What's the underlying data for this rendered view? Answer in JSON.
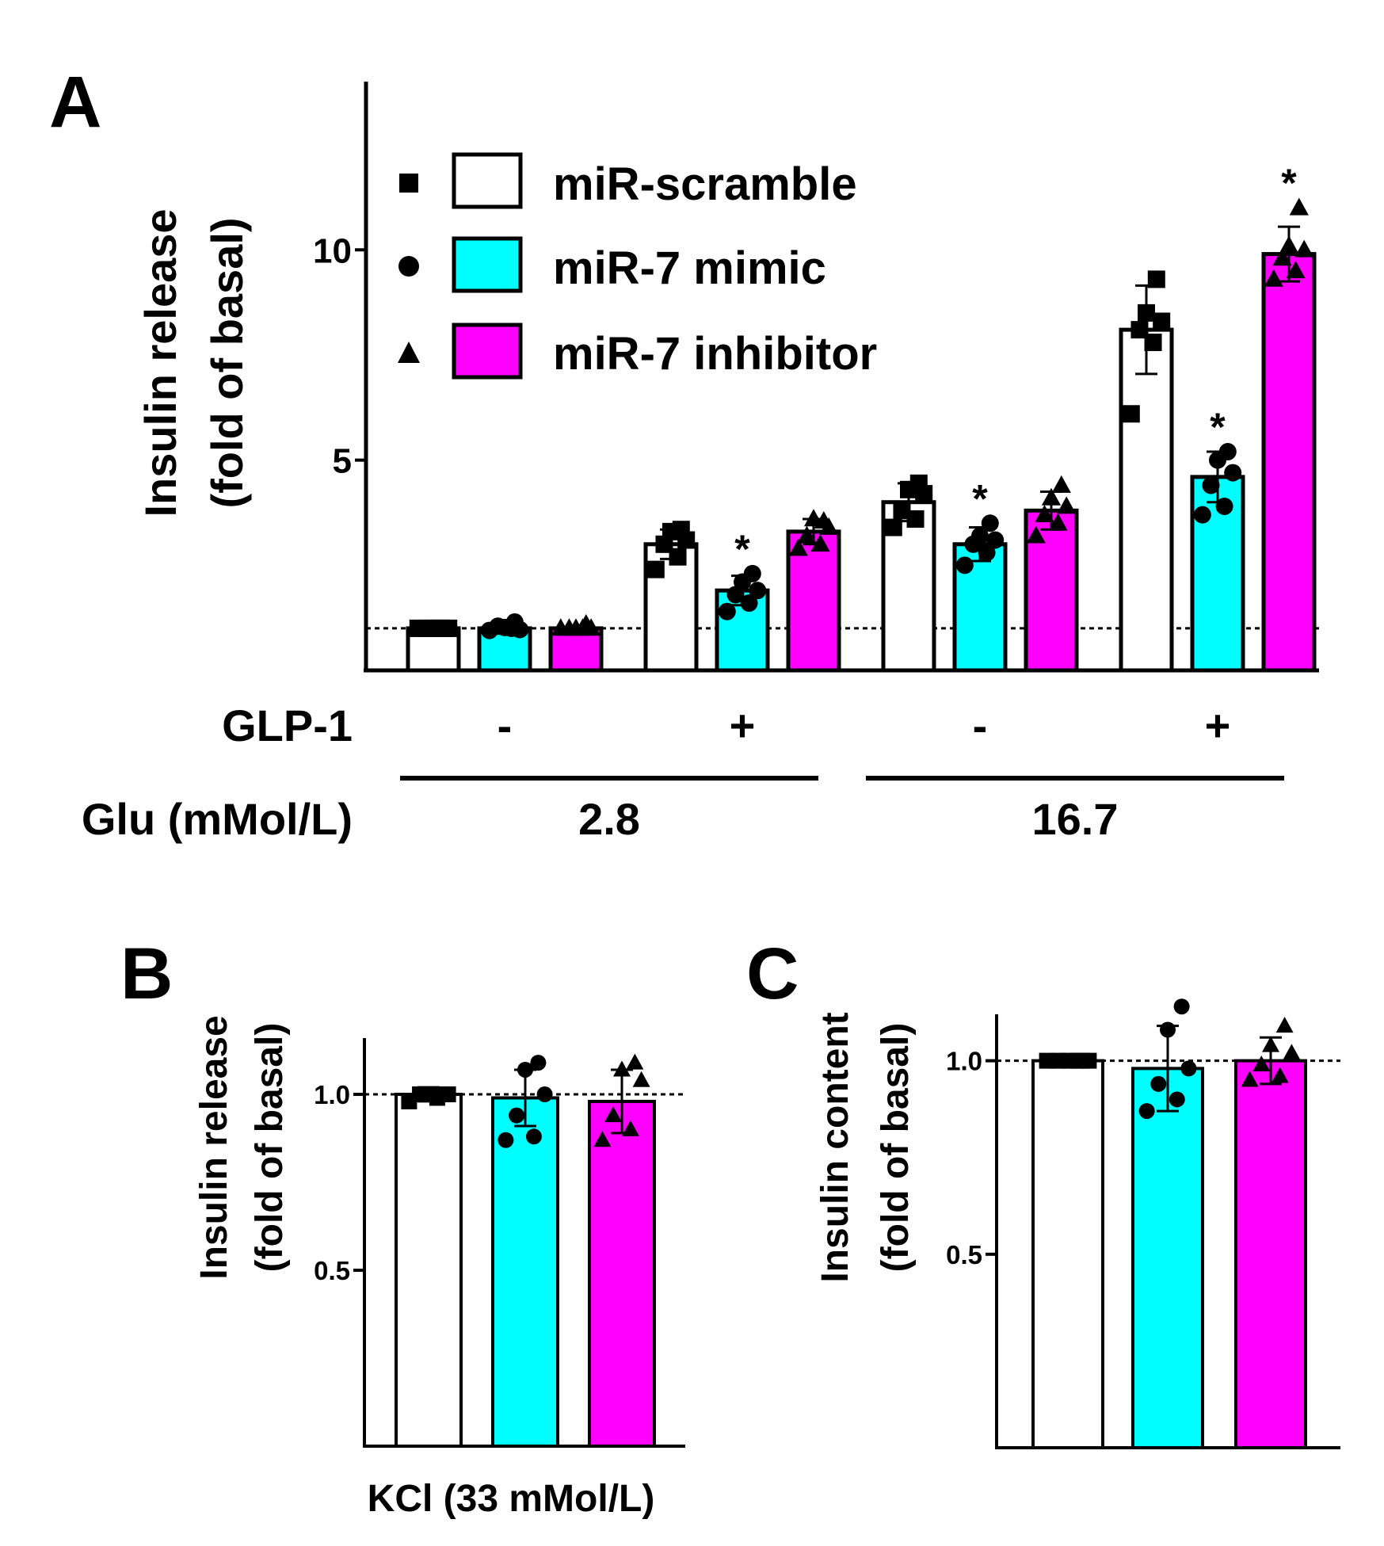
{
  "colors": {
    "miR-scramble": "#ffffff",
    "miR-7 mimic": "#00ffff",
    "miR-7 inhibitor": "#ff00ff"
  },
  "markers": {
    "miR-scramble": "square",
    "miR-7 mimic": "circle",
    "miR-7 inhibitor": "triangle"
  },
  "legend": [
    "miR-scramble",
    "miR-7 mimic",
    "miR-7 inhibitor"
  ],
  "chart_data": [
    {
      "panel": "A",
      "type": "bar",
      "ylabel_line1": "Insulin release",
      "ylabel_line2": "(fold of basal)",
      "ylim": [
        0,
        14
      ],
      "yticks": [
        5,
        10
      ],
      "ytick_labels": [
        "5",
        "10"
      ],
      "baseline": 1.0,
      "condition_row1_label": "GLP-1",
      "condition_row2_label": "Glu (mMol/L)",
      "groups": [
        {
          "glp1": "-",
          "glu": "2.8",
          "bars": [
            {
              "series": "miR-scramble",
              "value": 1.0,
              "err": 0.0,
              "sig": "",
              "points": [
                1.0,
                1.0,
                1.0,
                1.0,
                1.0,
                1.0
              ]
            },
            {
              "series": "miR-7 mimic",
              "value": 1.0,
              "err": 0.08,
              "sig": "",
              "points": [
                0.95,
                1.0,
                1.05,
                0.97,
                1.02,
                1.15
              ]
            },
            {
              "series": "miR-7 inhibitor",
              "value": 1.0,
              "err": 0.03,
              "sig": "",
              "points": [
                1.0,
                1.0,
                1.0,
                1.0,
                1.0,
                1.1
              ]
            }
          ]
        },
        {
          "glp1": "+",
          "glu": "2.8",
          "bars": [
            {
              "series": "miR-scramble",
              "value": 3.0,
              "err": 0.35,
              "sig": "",
              "points": [
                2.4,
                2.7,
                3.0,
                3.1,
                3.3,
                3.35
              ]
            },
            {
              "series": "miR-7 mimic",
              "value": 1.9,
              "err": 0.35,
              "sig": "*",
              "points": [
                1.4,
                1.6,
                1.8,
                1.9,
                2.1,
                2.3
              ]
            },
            {
              "series": "miR-7 inhibitor",
              "value": 3.3,
              "err": 0.3,
              "sig": "",
              "points": [
                2.9,
                3.0,
                3.2,
                3.4,
                3.6,
                3.55
              ]
            }
          ]
        },
        {
          "glp1": "-",
          "glu": "16.7",
          "bars": [
            {
              "series": "miR-scramble",
              "value": 4.0,
              "err": 0.45,
              "sig": "",
              "points": [
                3.4,
                3.6,
                3.8,
                4.2,
                4.3,
                4.45
              ]
            },
            {
              "series": "miR-7 mimic",
              "value": 3.0,
              "err": 0.4,
              "sig": "*",
              "points": [
                2.5,
                2.8,
                3.0,
                3.1,
                3.2,
                3.5
              ]
            },
            {
              "series": "miR-7 inhibitor",
              "value": 3.8,
              "err": 0.45,
              "sig": "",
              "points": [
                3.2,
                3.5,
                3.7,
                3.9,
                4.1,
                4.4
              ]
            }
          ]
        },
        {
          "glp1": "+",
          "glu": "16.7",
          "bars": [
            {
              "series": "miR-scramble",
              "value": 8.1,
              "err": 1.05,
              "sig": "",
              "points": [
                6.1,
                7.8,
                8.1,
                8.3,
                8.5,
                9.3
              ]
            },
            {
              "series": "miR-7 mimic",
              "value": 4.6,
              "err": 0.6,
              "sig": "*",
              "points": [
                3.7,
                3.9,
                4.4,
                4.7,
                5.0,
                5.2
              ]
            },
            {
              "series": "miR-7 inhibitor",
              "value": 9.9,
              "err": 0.65,
              "sig": "*",
              "points": [
                9.3,
                9.5,
                9.8,
                10.0,
                10.1,
                11.0
              ]
            }
          ]
        }
      ]
    },
    {
      "panel": "B",
      "type": "bar",
      "ylabel_line1": "Insulin release",
      "ylabel_line2": "(fold of basal)",
      "ylim": [
        0,
        1.16
      ],
      "yticks": [
        0.5,
        1.0
      ],
      "ytick_labels": [
        "0.5",
        "1.0"
      ],
      "baseline": 1.0,
      "xlabel": "KCl (33 mMol/L)",
      "bars": [
        {
          "series": "miR-scramble",
          "value": 1.0,
          "err": 0.02,
          "points": [
            0.98,
            0.99,
            1.0,
            1.0,
            1.0,
            1.0
          ]
        },
        {
          "series": "miR-7 mimic",
          "value": 0.99,
          "err": 0.08,
          "points": [
            0.87,
            0.88,
            0.94,
            1.0,
            1.07,
            1.09
          ]
        },
        {
          "series": "miR-7 inhibitor",
          "value": 0.98,
          "err": 0.09,
          "points": [
            0.87,
            0.9,
            0.94,
            1.04,
            1.07,
            1.09
          ]
        }
      ]
    },
    {
      "panel": "C",
      "type": "bar",
      "ylabel_line1": "Insulin content",
      "ylabel_line2": "(fold of basal)",
      "ylim": [
        0,
        1.12
      ],
      "yticks": [
        0.5,
        1.0
      ],
      "ytick_labels": [
        "0.5",
        "1.0"
      ],
      "baseline": 1.0,
      "bars": [
        {
          "series": "miR-scramble",
          "value": 1.0,
          "err": 0.0,
          "points": [
            1.0,
            1.0,
            1.0,
            1.0,
            1.0,
            1.0
          ]
        },
        {
          "series": "miR-7 mimic",
          "value": 0.98,
          "err": 0.11,
          "points": [
            0.87,
            0.9,
            0.94,
            0.98,
            1.08,
            1.14
          ]
        },
        {
          "series": "miR-7 inhibitor",
          "value": 1.0,
          "err": 0.06,
          "points": [
            0.95,
            0.96,
            0.99,
            1.02,
            1.04,
            1.09
          ]
        }
      ]
    }
  ]
}
